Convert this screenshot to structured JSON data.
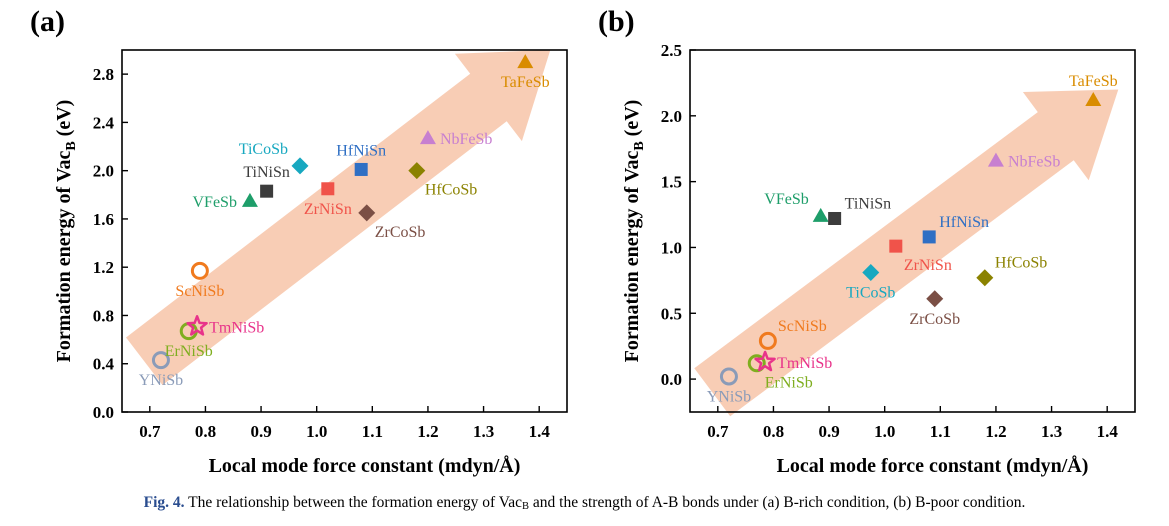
{
  "caption": {
    "head": "Fig. 4.",
    "text_before": "The relationship between the formation energy of Vac",
    "sub": "B",
    "text_after": " and the strength of A-B bonds under (a) B-rich condition, (b) B-poor condition."
  },
  "chart_data": [
    {
      "type": "scatter",
      "panel": "(a)",
      "xlabel": "Local mode force constant (mdyn/Å)",
      "ylabel_main": "Formation energy of Vac",
      "ylabel_sub": "B",
      "ylabel_suffix": " (eV)",
      "xlim": [
        0.65,
        1.45
      ],
      "ylim": [
        0.0,
        3.0
      ],
      "xticks": [
        0.7,
        0.8,
        0.9,
        1.0,
        1.1,
        1.2,
        1.3,
        1.4
      ],
      "xtick_labels": [
        "0.7",
        "0.8",
        "0.9",
        "1.0",
        "1.1",
        "1.2",
        "1.3",
        "1.4"
      ],
      "yticks": [
        0.0,
        0.4,
        0.8,
        1.2,
        1.6,
        2.0,
        2.4,
        2.8
      ],
      "ytick_labels": [
        "0.0",
        "0.4",
        "0.8",
        "1.2",
        "1.6",
        "2.0",
        "2.4",
        "2.8"
      ],
      "trend_arrow": {
        "from": [
          0.69,
          0.42
        ],
        "to": [
          1.42,
          3.0
        ],
        "color": "#f7c4a8"
      },
      "points": [
        {
          "name": "YNiSb",
          "x": 0.72,
          "y": 0.43,
          "marker": "circle-open",
          "color": "#8a9bb8",
          "label_pos": "below"
        },
        {
          "name": "ErNiSb",
          "x": 0.77,
          "y": 0.67,
          "marker": "circle-open",
          "color": "#7fae1f",
          "label_pos": "below"
        },
        {
          "name": "TmNiSb",
          "x": 0.785,
          "y": 0.71,
          "marker": "star-open",
          "color": "#e8338a",
          "label_pos": "right"
        },
        {
          "name": "ScNiSb",
          "x": 0.79,
          "y": 1.17,
          "marker": "circle-open",
          "color": "#f07a1e",
          "label_pos": "below"
        },
        {
          "name": "VFeSb",
          "x": 0.88,
          "y": 1.75,
          "marker": "triangle",
          "color": "#1e9e6a",
          "label_pos": "left"
        },
        {
          "name": "TiNiSn",
          "x": 0.91,
          "y": 1.83,
          "marker": "square",
          "color": "#3c3c3c",
          "label_pos": "above"
        },
        {
          "name": "TiCoSb",
          "x": 0.97,
          "y": 2.04,
          "marker": "diamond",
          "color": "#17a8c0",
          "label_pos": "above-left"
        },
        {
          "name": "ZrNiSn",
          "x": 1.02,
          "y": 1.85,
          "marker": "square",
          "color": "#f0534a",
          "label_pos": "below"
        },
        {
          "name": "HfNiSn",
          "x": 1.08,
          "y": 2.01,
          "marker": "square",
          "color": "#2f6fc4",
          "label_pos": "above"
        },
        {
          "name": "ZrCoSb",
          "x": 1.09,
          "y": 1.65,
          "marker": "diamond",
          "color": "#7b4f45",
          "label_pos": "below-right"
        },
        {
          "name": "HfCoSb",
          "x": 1.18,
          "y": 2.0,
          "marker": "diamond",
          "color": "#8b8200",
          "label_pos": "below-right"
        },
        {
          "name": "NbFeSb",
          "x": 1.2,
          "y": 2.27,
          "marker": "triangle",
          "color": "#c77fd0",
          "label_pos": "right"
        },
        {
          "name": "TaFeSb",
          "x": 1.375,
          "y": 2.9,
          "marker": "triangle",
          "color": "#d98c00",
          "label_pos": "below"
        }
      ]
    },
    {
      "type": "scatter",
      "panel": "(b)",
      "xlabel": "Local mode force constant (mdyn/Å)",
      "ylabel_main": "Formation energy of Vac",
      "ylabel_sub": "B",
      "ylabel_suffix": " (eV)",
      "xlim": [
        0.65,
        1.45
      ],
      "ylim": [
        -0.25,
        2.5
      ],
      "xticks": [
        0.7,
        0.8,
        0.9,
        1.0,
        1.1,
        1.2,
        1.3,
        1.4
      ],
      "xtick_labels": [
        "0.7",
        "0.8",
        "0.9",
        "1.0",
        "1.1",
        "1.2",
        "1.3",
        "1.4"
      ],
      "yticks": [
        0.0,
        0.5,
        1.0,
        1.5,
        2.0,
        2.5
      ],
      "ytick_labels": [
        "0.0",
        "0.5",
        "1.0",
        "1.5",
        "2.0",
        "2.5"
      ],
      "trend_arrow": {
        "from": [
          0.69,
          -0.1
        ],
        "to": [
          1.42,
          2.2
        ],
        "color": "#f7c4a8"
      },
      "points": [
        {
          "name": "YNiSb",
          "x": 0.72,
          "y": 0.02,
          "marker": "circle-open",
          "color": "#8a9bb8",
          "label_pos": "below"
        },
        {
          "name": "ErNiSb",
          "x": 0.77,
          "y": 0.12,
          "marker": "circle-open",
          "color": "#7fae1f",
          "label_pos": "below-right"
        },
        {
          "name": "TmNiSb",
          "x": 0.785,
          "y": 0.13,
          "marker": "star-open",
          "color": "#e8338a",
          "label_pos": "right"
        },
        {
          "name": "ScNiSb",
          "x": 0.79,
          "y": 0.29,
          "marker": "circle-open",
          "color": "#f07a1e",
          "label_pos": "above-right"
        },
        {
          "name": "VFeSb",
          "x": 0.885,
          "y": 1.24,
          "marker": "triangle",
          "color": "#1e9e6a",
          "label_pos": "above-left"
        },
        {
          "name": "TiNiSn",
          "x": 0.91,
          "y": 1.22,
          "marker": "square",
          "color": "#3c3c3c",
          "label_pos": "above-right"
        },
        {
          "name": "TiCoSb",
          "x": 0.975,
          "y": 0.81,
          "marker": "diamond",
          "color": "#17a8c0",
          "label_pos": "below"
        },
        {
          "name": "ZrNiSn",
          "x": 1.02,
          "y": 1.01,
          "marker": "square",
          "color": "#f0534a",
          "label_pos": "below-right"
        },
        {
          "name": "HfNiSn",
          "x": 1.08,
          "y": 1.08,
          "marker": "square",
          "color": "#2f6fc4",
          "label_pos": "above-right"
        },
        {
          "name": "ZrCoSb",
          "x": 1.09,
          "y": 0.61,
          "marker": "diamond",
          "color": "#7b4f45",
          "label_pos": "below"
        },
        {
          "name": "HfCoSb",
          "x": 1.18,
          "y": 0.77,
          "marker": "diamond",
          "color": "#8b8200",
          "label_pos": "above-right"
        },
        {
          "name": "NbFeSb",
          "x": 1.2,
          "y": 1.66,
          "marker": "triangle",
          "color": "#c77fd0",
          "label_pos": "right"
        },
        {
          "name": "TaFeSb",
          "x": 1.375,
          "y": 2.12,
          "marker": "triangle",
          "color": "#d98c00",
          "label_pos": "above"
        }
      ]
    }
  ]
}
